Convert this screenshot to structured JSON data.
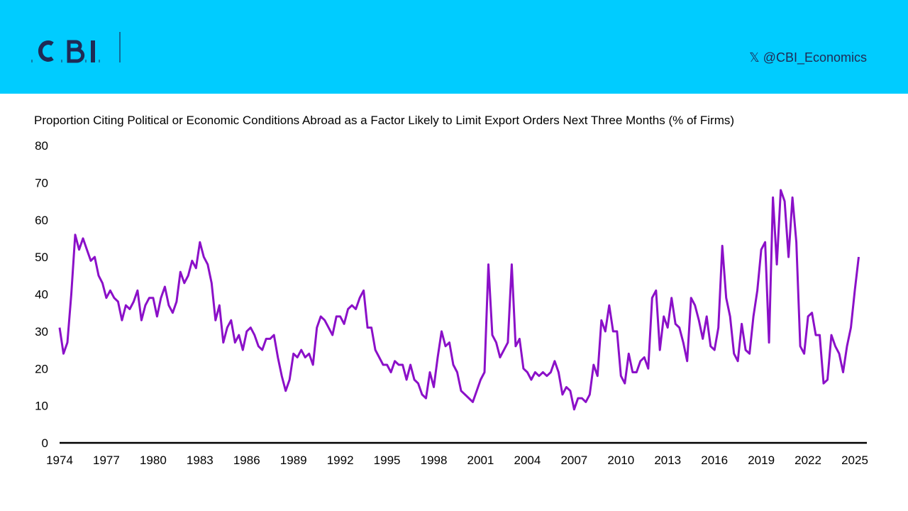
{
  "header": {
    "logo_text": "CBI",
    "social_icon": "x-logo-icon",
    "social_handle": "@CBI_Economics",
    "brand_color": "#00ccff",
    "logo_color": "#1f2a55"
  },
  "chart_data": {
    "type": "line",
    "title": "Proportion Citing Political or Economic Conditions Abroad as a Factor Likely to Limit Export Orders Next Three Months (% of Firms)",
    "xlabel": "",
    "ylabel": "",
    "frequency": "quarterly",
    "start": "1974 Q1",
    "xlim": [
      1974,
      2025.5
    ],
    "ylim": [
      0,
      80
    ],
    "x_ticks": [
      "1974",
      "1977",
      "1980",
      "1983",
      "1986",
      "1989",
      "1992",
      "1995",
      "1998",
      "2001",
      "2004",
      "2007",
      "2010",
      "2013",
      "2016",
      "2019",
      "2022",
      "2025"
    ],
    "y_ticks": [
      "0",
      "10",
      "20",
      "30",
      "40",
      "50",
      "60",
      "70",
      "80"
    ],
    "grid": false,
    "legend": "none",
    "line_color": "#8b10c8",
    "values": [
      31,
      24,
      27,
      40,
      56,
      52,
      55,
      52,
      49,
      50,
      45,
      43,
      39,
      41,
      39,
      38,
      33,
      37,
      36,
      38,
      41,
      33,
      37,
      39,
      39,
      34,
      39,
      42,
      37,
      35,
      38,
      46,
      43,
      45,
      49,
      47,
      54,
      50,
      48,
      43,
      33,
      37,
      27,
      31,
      33,
      27,
      29,
      25,
      30,
      31,
      29,
      26,
      25,
      28,
      28,
      29,
      23,
      18,
      14,
      17,
      24,
      23,
      25,
      23,
      24,
      21,
      31,
      34,
      33,
      31,
      29,
      34,
      34,
      32,
      36,
      37,
      36,
      39,
      41,
      31,
      31,
      25,
      23,
      21,
      21,
      19,
      22,
      21,
      21,
      17,
      21,
      17,
      16,
      13,
      12,
      19,
      15,
      23,
      30,
      26,
      27,
      21,
      19,
      14,
      13,
      12,
      11,
      14,
      17,
      19,
      48,
      29,
      27,
      23,
      25,
      27,
      48,
      26,
      28,
      20,
      19,
      17,
      19,
      18,
      19,
      18,
      19,
      22,
      19,
      13,
      15,
      14,
      9,
      12,
      12,
      11,
      13,
      21,
      18,
      33,
      30,
      37,
      30,
      30,
      18,
      16,
      24,
      19,
      19,
      22,
      23,
      20,
      39,
      41,
      25,
      34,
      31,
      39,
      32,
      31,
      27,
      22,
      39,
      37,
      33,
      28,
      34,
      26,
      25,
      31,
      53,
      39,
      34,
      24,
      22,
      32,
      25,
      24,
      34,
      41,
      52,
      54,
      27,
      66,
      48,
      68,
      65,
      50,
      66,
      54,
      26,
      24,
      34,
      35,
      29,
      29,
      16,
      17,
      29,
      26,
      24,
      19,
      26,
      31,
      41,
      50
    ]
  }
}
